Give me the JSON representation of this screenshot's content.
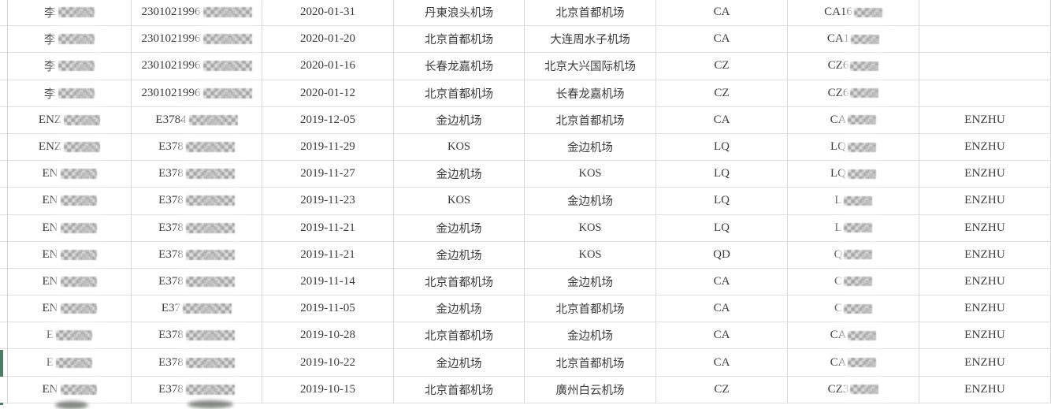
{
  "table": {
    "rows": [
      {
        "name_prefix": "李",
        "id_prefix": "2301021996",
        "date": "2020-01-31",
        "departure": "丹東浪头机场",
        "arrival": "北京首都机场",
        "airline": "CA",
        "flight_prefix": "CA16",
        "remark": ""
      },
      {
        "name_prefix": "李",
        "id_prefix": "2301021996",
        "date": "2020-01-20",
        "departure": "北京首都机场",
        "arrival": "大连周水子机场",
        "airline": "CA",
        "flight_prefix": "CA1",
        "remark": ""
      },
      {
        "name_prefix": "李",
        "id_prefix": "2301021996",
        "date": "2020-01-16",
        "departure": "长春龙嘉机场",
        "arrival": "北京大兴国际机场",
        "airline": "CZ",
        "flight_prefix": "CZ6",
        "remark": ""
      },
      {
        "name_prefix": "李",
        "id_prefix": "2301021996",
        "date": "2020-01-12",
        "departure": "北京首都机场",
        "arrival": "长春龙嘉机场",
        "airline": "CZ",
        "flight_prefix": "CZ6",
        "remark": ""
      },
      {
        "name_prefix": "ENZ",
        "id_prefix": "E3784",
        "date": "2019-12-05",
        "departure": "金边机场",
        "arrival": "北京首都机场",
        "airline": "CA",
        "flight_prefix": "CA",
        "remark": "ENZHU"
      },
      {
        "name_prefix": "ENZ",
        "id_prefix": "E378",
        "date": "2019-11-29",
        "departure": "KOS",
        "arrival": "金边机场",
        "airline": "LQ",
        "flight_prefix": "LQ",
        "remark": "ENZHU"
      },
      {
        "name_prefix": "EN",
        "id_prefix": "E378",
        "date": "2019-11-27",
        "departure": "金边机场",
        "arrival": "KOS",
        "airline": "LQ",
        "flight_prefix": "LQ",
        "remark": "ENZHU"
      },
      {
        "name_prefix": "EN",
        "id_prefix": "E378",
        "date": "2019-11-23",
        "departure": "KOS",
        "arrival": "金边机场",
        "airline": "LQ",
        "flight_prefix": "L",
        "remark": "ENZHU"
      },
      {
        "name_prefix": "EN",
        "id_prefix": "E378",
        "date": "2019-11-21",
        "departure": "金边机场",
        "arrival": "KOS",
        "airline": "LQ",
        "flight_prefix": "L",
        "remark": "ENZHU"
      },
      {
        "name_prefix": "EN",
        "id_prefix": "E378",
        "date": "2019-11-21",
        "departure": "金边机场",
        "arrival": "KOS",
        "airline": "QD",
        "flight_prefix": "Q",
        "remark": "ENZHU"
      },
      {
        "name_prefix": "EN",
        "id_prefix": "E378",
        "date": "2019-11-14",
        "departure": "北京首都机场",
        "arrival": "金边机场",
        "airline": "CA",
        "flight_prefix": "C",
        "remark": "ENZHU"
      },
      {
        "name_prefix": "EN",
        "id_prefix": "E37",
        "date": "2019-11-05",
        "departure": "金边机场",
        "arrival": "北京首都机场",
        "airline": "CA",
        "flight_prefix": "C",
        "remark": "ENZHU"
      },
      {
        "name_prefix": "E",
        "id_prefix": "E378",
        "date": "2019-10-28",
        "departure": "北京首都机场",
        "arrival": "金边机场",
        "airline": "CA",
        "flight_prefix": "CA",
        "remark": "ENZHU"
      },
      {
        "name_prefix": "E",
        "id_prefix": "E378",
        "date": "2019-10-22",
        "departure": "金边机场",
        "arrival": "北京首都机场",
        "airline": "CA",
        "flight_prefix": "CA",
        "remark": "ENZHU"
      },
      {
        "name_prefix": "EN",
        "id_prefix": "E378",
        "date": "2019-10-15",
        "departure": "北京首都机场",
        "arrival": "廣州白云机场",
        "airline": "CZ",
        "flight_prefix": "CZ3",
        "remark": "ENZHU"
      }
    ]
  },
  "colors": {
    "grid_line": "#dadada",
    "text": "#3c3c3c",
    "selection_marker_green": "#4e7d64",
    "background": "#ffffff",
    "mosaic_gray": "#c7c7c7"
  }
}
